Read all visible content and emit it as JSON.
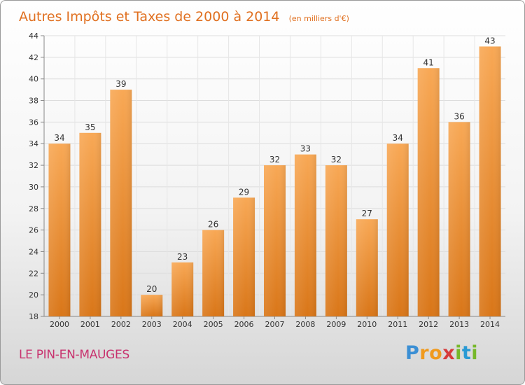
{
  "chart_data": {
    "type": "bar",
    "title": "Autres Impôts et Taxes de 2000 à 2014",
    "unit": "(en milliers d'€)",
    "categories": [
      "2000",
      "2001",
      "2002",
      "2003",
      "2004",
      "2005",
      "2006",
      "2007",
      "2008",
      "2009",
      "2010",
      "2011",
      "2012",
      "2013",
      "2014"
    ],
    "values": [
      34,
      35,
      39,
      20,
      23,
      26,
      29,
      32,
      33,
      32,
      27,
      34,
      41,
      36,
      43
    ],
    "ylim": [
      18,
      44
    ],
    "yticks": [
      18,
      20,
      22,
      24,
      26,
      28,
      30,
      32,
      34,
      36,
      38,
      40,
      42,
      44
    ],
    "grid": true,
    "colors": {
      "bar_light": "#f7a24e",
      "bar_dark": "#dd7a1e",
      "title": "#e07020"
    }
  },
  "footer": {
    "commune": "LE PIN-EN-MAUGES",
    "brand_letters": [
      "P",
      "r",
      "o",
      "x",
      "i",
      "t",
      "i"
    ],
    "brand_colors": [
      "#3b8fd4",
      "#f09a1e",
      "#f09a1e",
      "#d63b3b",
      "#76b82a",
      "#2a9ad4",
      "#76b82a"
    ]
  }
}
